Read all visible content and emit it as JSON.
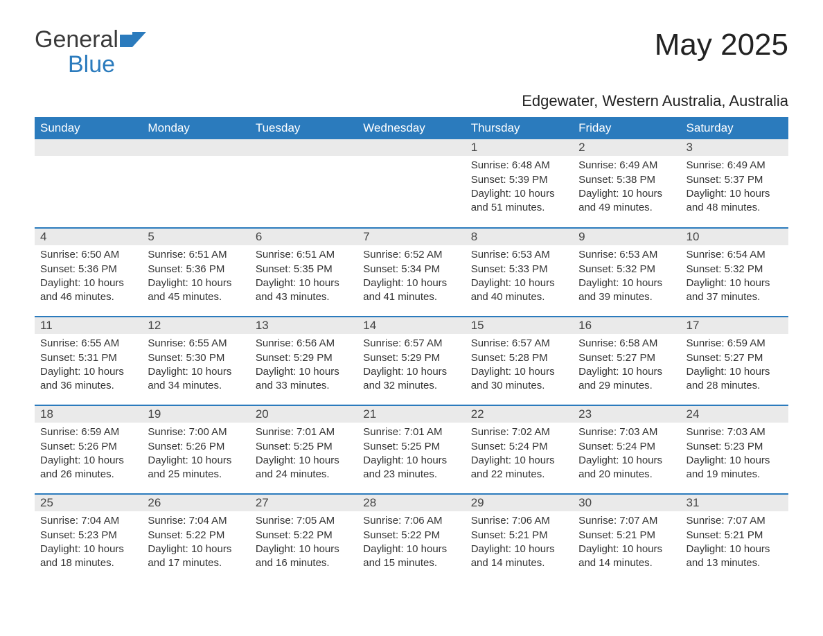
{
  "brand": {
    "name_part1": "General",
    "name_part2": "Blue"
  },
  "title": "May 2025",
  "location": "Edgewater, Western Australia, Australia",
  "colors": {
    "header_bg": "#2b7bbd",
    "header_text": "#ffffff",
    "daynum_bg": "#eaeaea",
    "text": "#333333",
    "rule": "#2b7bbd",
    "background": "#ffffff"
  },
  "typography": {
    "base_font": "Arial",
    "title_size_pt": 33,
    "location_size_pt": 17,
    "th_size_pt": 13,
    "body_size_pt": 11
  },
  "day_headers": [
    "Sunday",
    "Monday",
    "Tuesday",
    "Wednesday",
    "Thursday",
    "Friday",
    "Saturday"
  ],
  "weeks": [
    [
      null,
      null,
      null,
      null,
      {
        "n": "1",
        "sunrise": "6:48 AM",
        "sunset": "5:39 PM",
        "daylight": "10 hours and 51 minutes."
      },
      {
        "n": "2",
        "sunrise": "6:49 AM",
        "sunset": "5:38 PM",
        "daylight": "10 hours and 49 minutes."
      },
      {
        "n": "3",
        "sunrise": "6:49 AM",
        "sunset": "5:37 PM",
        "daylight": "10 hours and 48 minutes."
      }
    ],
    [
      {
        "n": "4",
        "sunrise": "6:50 AM",
        "sunset": "5:36 PM",
        "daylight": "10 hours and 46 minutes."
      },
      {
        "n": "5",
        "sunrise": "6:51 AM",
        "sunset": "5:36 PM",
        "daylight": "10 hours and 45 minutes."
      },
      {
        "n": "6",
        "sunrise": "6:51 AM",
        "sunset": "5:35 PM",
        "daylight": "10 hours and 43 minutes."
      },
      {
        "n": "7",
        "sunrise": "6:52 AM",
        "sunset": "5:34 PM",
        "daylight": "10 hours and 41 minutes."
      },
      {
        "n": "8",
        "sunrise": "6:53 AM",
        "sunset": "5:33 PM",
        "daylight": "10 hours and 40 minutes."
      },
      {
        "n": "9",
        "sunrise": "6:53 AM",
        "sunset": "5:32 PM",
        "daylight": "10 hours and 39 minutes."
      },
      {
        "n": "10",
        "sunrise": "6:54 AM",
        "sunset": "5:32 PM",
        "daylight": "10 hours and 37 minutes."
      }
    ],
    [
      {
        "n": "11",
        "sunrise": "6:55 AM",
        "sunset": "5:31 PM",
        "daylight": "10 hours and 36 minutes."
      },
      {
        "n": "12",
        "sunrise": "6:55 AM",
        "sunset": "5:30 PM",
        "daylight": "10 hours and 34 minutes."
      },
      {
        "n": "13",
        "sunrise": "6:56 AM",
        "sunset": "5:29 PM",
        "daylight": "10 hours and 33 minutes."
      },
      {
        "n": "14",
        "sunrise": "6:57 AM",
        "sunset": "5:29 PM",
        "daylight": "10 hours and 32 minutes."
      },
      {
        "n": "15",
        "sunrise": "6:57 AM",
        "sunset": "5:28 PM",
        "daylight": "10 hours and 30 minutes."
      },
      {
        "n": "16",
        "sunrise": "6:58 AM",
        "sunset": "5:27 PM",
        "daylight": "10 hours and 29 minutes."
      },
      {
        "n": "17",
        "sunrise": "6:59 AM",
        "sunset": "5:27 PM",
        "daylight": "10 hours and 28 minutes."
      }
    ],
    [
      {
        "n": "18",
        "sunrise": "6:59 AM",
        "sunset": "5:26 PM",
        "daylight": "10 hours and 26 minutes."
      },
      {
        "n": "19",
        "sunrise": "7:00 AM",
        "sunset": "5:26 PM",
        "daylight": "10 hours and 25 minutes."
      },
      {
        "n": "20",
        "sunrise": "7:01 AM",
        "sunset": "5:25 PM",
        "daylight": "10 hours and 24 minutes."
      },
      {
        "n": "21",
        "sunrise": "7:01 AM",
        "sunset": "5:25 PM",
        "daylight": "10 hours and 23 minutes."
      },
      {
        "n": "22",
        "sunrise": "7:02 AM",
        "sunset": "5:24 PM",
        "daylight": "10 hours and 22 minutes."
      },
      {
        "n": "23",
        "sunrise": "7:03 AM",
        "sunset": "5:24 PM",
        "daylight": "10 hours and 20 minutes."
      },
      {
        "n": "24",
        "sunrise": "7:03 AM",
        "sunset": "5:23 PM",
        "daylight": "10 hours and 19 minutes."
      }
    ],
    [
      {
        "n": "25",
        "sunrise": "7:04 AM",
        "sunset": "5:23 PM",
        "daylight": "10 hours and 18 minutes."
      },
      {
        "n": "26",
        "sunrise": "7:04 AM",
        "sunset": "5:22 PM",
        "daylight": "10 hours and 17 minutes."
      },
      {
        "n": "27",
        "sunrise": "7:05 AM",
        "sunset": "5:22 PM",
        "daylight": "10 hours and 16 minutes."
      },
      {
        "n": "28",
        "sunrise": "7:06 AM",
        "sunset": "5:22 PM",
        "daylight": "10 hours and 15 minutes."
      },
      {
        "n": "29",
        "sunrise": "7:06 AM",
        "sunset": "5:21 PM",
        "daylight": "10 hours and 14 minutes."
      },
      {
        "n": "30",
        "sunrise": "7:07 AM",
        "sunset": "5:21 PM",
        "daylight": "10 hours and 14 minutes."
      },
      {
        "n": "31",
        "sunrise": "7:07 AM",
        "sunset": "5:21 PM",
        "daylight": "10 hours and 13 minutes."
      }
    ]
  ],
  "labels": {
    "sunrise": "Sunrise: ",
    "sunset": "Sunset: ",
    "daylight": "Daylight: "
  }
}
